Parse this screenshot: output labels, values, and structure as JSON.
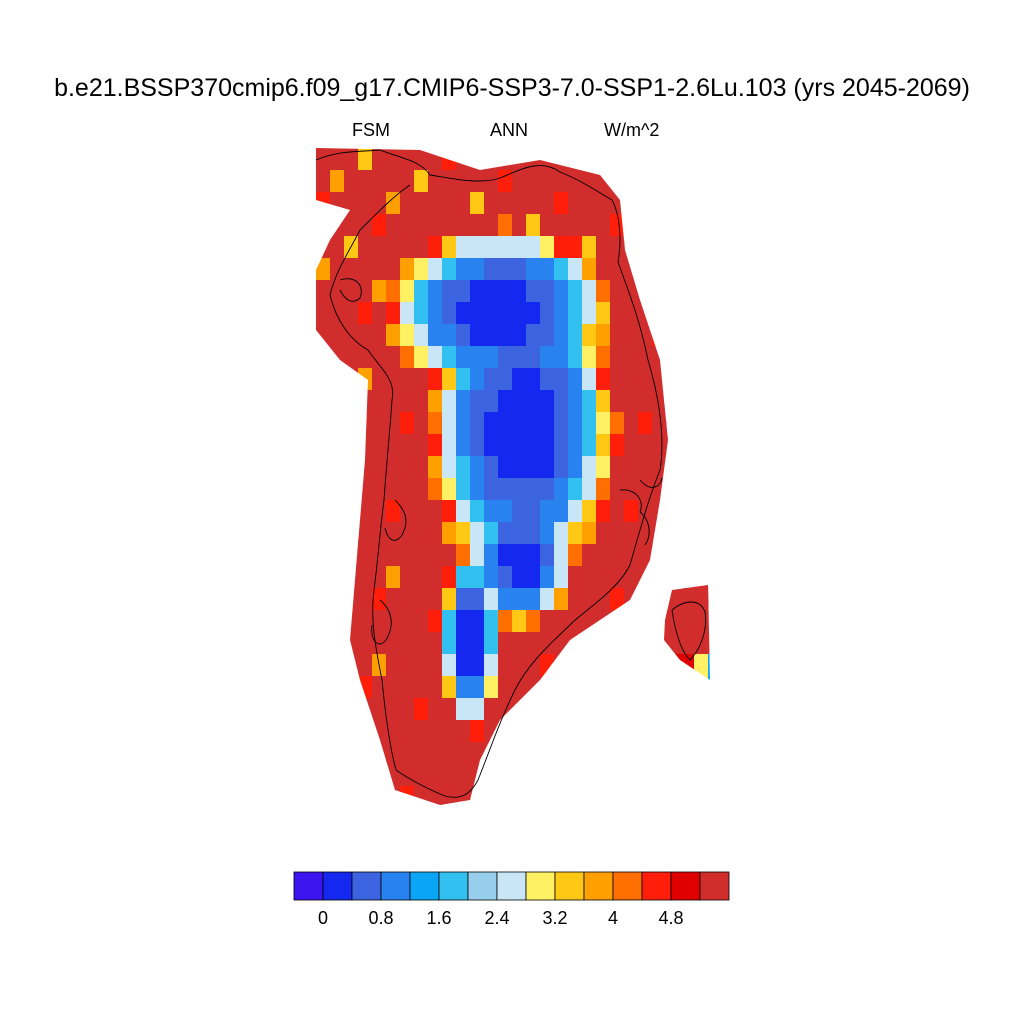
{
  "title": "b.e21.BSSP370cmip6.f09_g17.CMIP6-SSP3-7.0-SSP1-2.6Lu.103 (yrs 2045-2069)",
  "subtitle": {
    "left": "FSM",
    "center": "ANN",
    "right": "W/m^2"
  },
  "colorbar": {
    "colors": [
      "#3c14f0",
      "#1428f0",
      "#3c64e0",
      "#2882f0",
      "#0aa6f5",
      "#32c0f0",
      "#96ceeb",
      "#c8e6f5",
      "#fff064",
      "#ffc814",
      "#ffa000",
      "#ff6e00",
      "#ff1e0a",
      "#e10000",
      "#d22d2d"
    ],
    "labels": [
      "0",
      "0.8",
      "1.6",
      "2.4",
      "3.2",
      "4",
      "4.8"
    ]
  },
  "map_data": {
    "region": "Greenland",
    "variable": "FSM",
    "season": "ANN",
    "units": "W/m^2",
    "pattern": "interior ice sheet near 0 (blue), rising through light blue and yellow at the margins to above 4.8 (dark red) along the coast"
  }
}
